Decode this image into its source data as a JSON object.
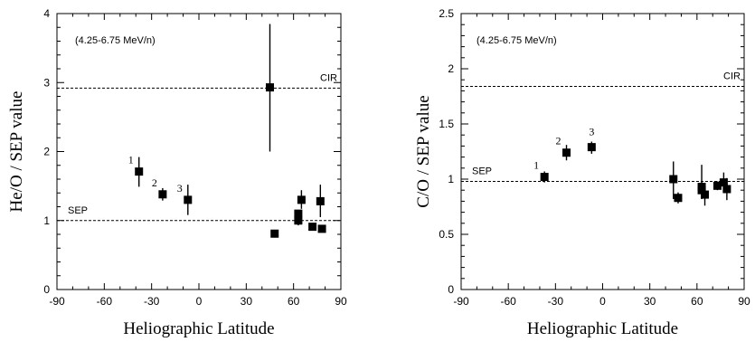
{
  "chart_data": [
    {
      "type": "scatter",
      "title": "",
      "xlabel": "Heliographic Latitude",
      "ylabel": "He/O / SEP value",
      "annotation": "(4.25-6.75 MeV/n)",
      "xlim": [
        -90,
        90
      ],
      "ylim": [
        0,
        4
      ],
      "x_ticks": [
        -90,
        -60,
        -30,
        0,
        30,
        60,
        90
      ],
      "y_ticks": [
        0,
        1,
        2,
        3,
        4
      ],
      "grid": false,
      "reference_lines": [
        {
          "label": "CIR",
          "y": 2.92
        },
        {
          "label": "SEP",
          "y": 1.0
        }
      ],
      "points": [
        {
          "x": -38,
          "y": 1.71,
          "err_low": 0.22,
          "err_high": 0.21,
          "label": "1"
        },
        {
          "x": -23,
          "y": 1.38,
          "err_low": 0.09,
          "err_high": 0.09,
          "label": "2"
        },
        {
          "x": -7,
          "y": 1.3,
          "err_low": 0.22,
          "err_high": 0.22,
          "label": "3"
        },
        {
          "x": 45,
          "y": 2.93,
          "err_low": 0.93,
          "err_high": 0.92,
          "label": ""
        },
        {
          "x": 48,
          "y": 0.81,
          "err_low": 0,
          "err_high": 0,
          "label": ""
        },
        {
          "x": 63,
          "y": 1.1,
          "err_low": 0.05,
          "err_high": 0.05,
          "label": ""
        },
        {
          "x": 63,
          "y": 1.0,
          "err_low": 0.07,
          "err_high": 0.07,
          "label": ""
        },
        {
          "x": 65,
          "y": 1.3,
          "err_low": 0.13,
          "err_high": 0.14,
          "label": ""
        },
        {
          "x": 72,
          "y": 0.91,
          "err_low": 0,
          "err_high": 0,
          "label": ""
        },
        {
          "x": 77,
          "y": 1.28,
          "err_low": 0.23,
          "err_high": 0.24,
          "label": ""
        },
        {
          "x": 78,
          "y": 0.88,
          "err_low": 0,
          "err_high": 0,
          "label": ""
        }
      ]
    },
    {
      "type": "scatter",
      "title": "",
      "xlabel": "Heliographic Latitude",
      "ylabel": "C/O / SEP value",
      "annotation": "(4.25-6.75 MeV/n)",
      "xlim": [
        -90,
        90
      ],
      "ylim": [
        0,
        2.5
      ],
      "x_ticks": [
        -90,
        -60,
        -30,
        0,
        30,
        60,
        90
      ],
      "y_ticks": [
        0,
        0.5,
        1,
        1.5,
        2,
        2.5
      ],
      "grid": false,
      "reference_lines": [
        {
          "label": "CIR",
          "y": 1.84
        },
        {
          "label": "SEP",
          "y": 0.98
        }
      ],
      "points": [
        {
          "x": -37,
          "y": 1.02,
          "err_low": 0.05,
          "err_high": 0.05,
          "label": "1"
        },
        {
          "x": -23,
          "y": 1.24,
          "err_low": 0.07,
          "err_high": 0.07,
          "label": "2"
        },
        {
          "x": -7,
          "y": 1.29,
          "err_low": 0.06,
          "err_high": 0.05,
          "label": "3"
        },
        {
          "x": 45,
          "y": 1.0,
          "err_low": 0.18,
          "err_high": 0.16,
          "label": ""
        },
        {
          "x": 48,
          "y": 0.83,
          "err_low": 0.05,
          "err_high": 0.05,
          "label": ""
        },
        {
          "x": 63,
          "y": 0.93,
          "err_low": 0.1,
          "err_high": 0.2,
          "label": ""
        },
        {
          "x": 63,
          "y": 0.9,
          "err_low": 0.08,
          "err_high": 0.08,
          "label": ""
        },
        {
          "x": 65,
          "y": 0.86,
          "err_low": 0.1,
          "err_high": 0.1,
          "label": ""
        },
        {
          "x": 73,
          "y": 0.94,
          "err_low": 0.04,
          "err_high": 0.04,
          "label": ""
        },
        {
          "x": 77,
          "y": 0.97,
          "err_low": 0.09,
          "err_high": 0.09,
          "label": ""
        },
        {
          "x": 79,
          "y": 0.91,
          "err_low": 0.1,
          "err_high": 0.1,
          "label": ""
        }
      ]
    }
  ]
}
